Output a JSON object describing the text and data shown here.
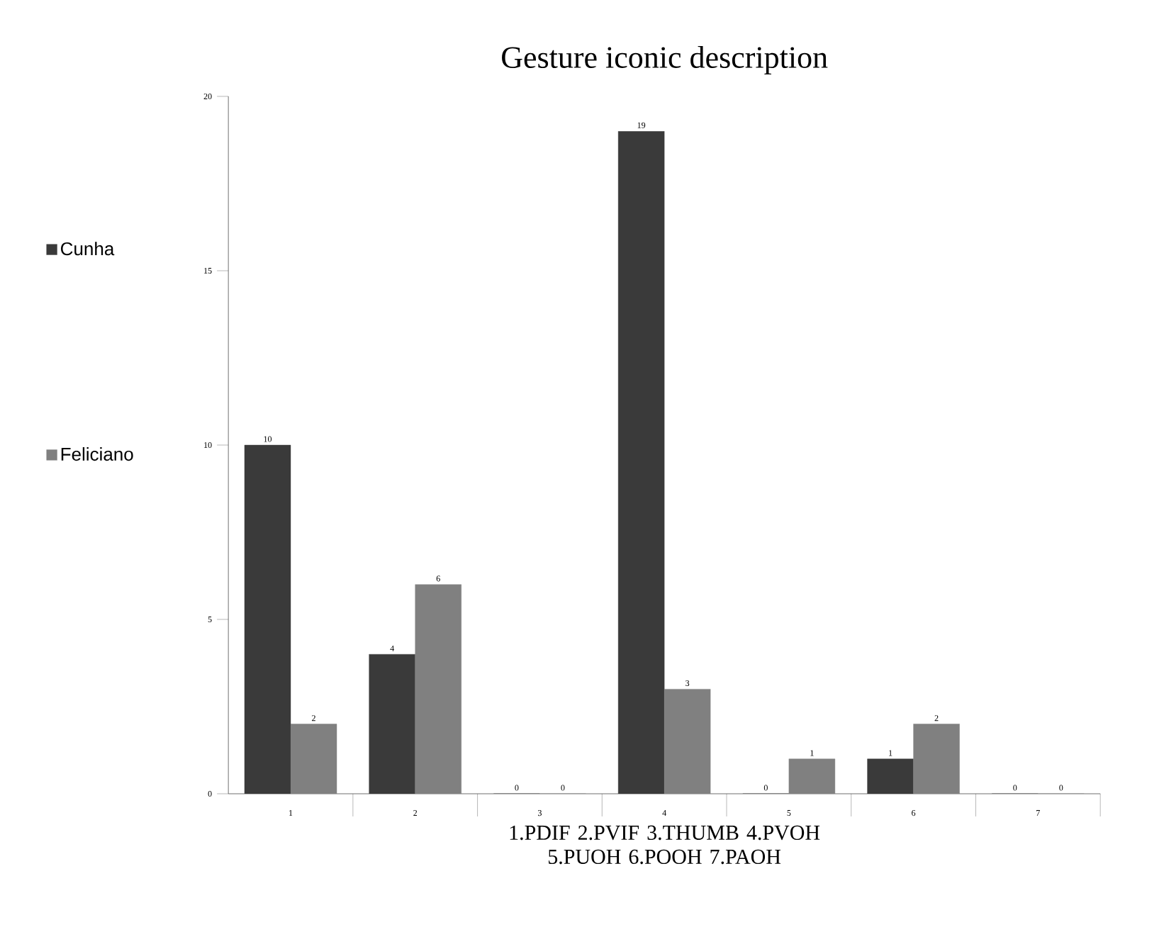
{
  "chart_data": {
    "type": "bar",
    "title": "Gesture iconic description",
    "xlabel": "1.PDIF 2.PVIF 3.THUMB 4.PVOH 5.PUOH 6.POOH 7.PAOH",
    "categories": [
      "1",
      "2",
      "3",
      "4",
      "5",
      "6",
      "7"
    ],
    "series": [
      {
        "name": "Cunha",
        "color": "#3a3a3a",
        "values": [
          10,
          4,
          0,
          19,
          0,
          1,
          0
        ]
      },
      {
        "name": "Feliciano",
        "color": "#808080",
        "values": [
          2,
          6,
          0,
          3,
          1,
          2,
          0
        ]
      }
    ],
    "ylim": [
      0,
      20
    ],
    "yticks": [
      0,
      5,
      10,
      15,
      20
    ],
    "data_labels": true,
    "legend": "left",
    "grid": false
  }
}
